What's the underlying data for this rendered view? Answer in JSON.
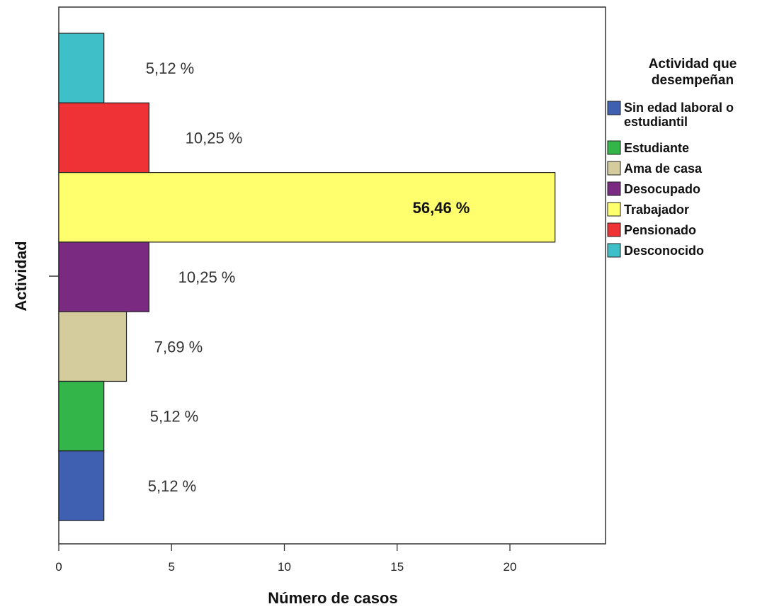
{
  "chart_data": {
    "type": "bar",
    "orientation": "horizontal",
    "xlabel": "Número de casos",
    "ylabel": "Actividad",
    "xlim": [
      0,
      24
    ],
    "xticks": [
      0,
      5,
      10,
      15,
      20
    ],
    "grid": false,
    "legend": {
      "title": "Actividad que desempeñan",
      "placement": "right",
      "items": [
        {
          "label": "Sin edad laboral o estudiantil",
          "color": "#3f5fb0"
        },
        {
          "label": "Estudiante",
          "color": "#33b54a"
        },
        {
          "label": "Ama de casa",
          "color": "#d4cc9c"
        },
        {
          "label": "Desocupado",
          "color": "#7b2a82"
        },
        {
          "label": "Trabajador",
          "color": "#ffff6e"
        },
        {
          "label": "Pensionado",
          "color": "#ee3236"
        },
        {
          "label": "Desconocido",
          "color": "#3fbfc8"
        }
      ]
    },
    "bars": [
      {
        "category": "Desconocido",
        "value": 2,
        "label": "5,12 %",
        "color": "#3fbfc8"
      },
      {
        "category": "Pensionado",
        "value": 4,
        "label": "10,25 %",
        "color": "#ee3236"
      },
      {
        "category": "Trabajador",
        "value": 22,
        "label": "56,46 %",
        "color": "#ffff6e",
        "bold": true
      },
      {
        "category": "Desocupado",
        "value": 4,
        "label": "10,25 %",
        "color": "#7b2a82"
      },
      {
        "category": "Ama de casa",
        "value": 3,
        "label": "7,69 %",
        "color": "#d4cc9c"
      },
      {
        "category": "Estudiante",
        "value": 2,
        "label": "5,12 %",
        "color": "#33b54a"
      },
      {
        "category": "Sin edad laboral o estudiantil",
        "value": 2,
        "label": "5,12 %",
        "color": "#3f5fb0"
      }
    ]
  }
}
